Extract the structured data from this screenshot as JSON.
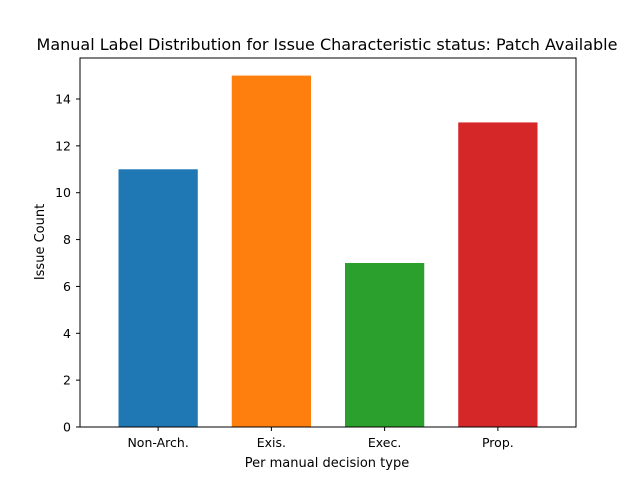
{
  "chart_data": {
    "type": "bar",
    "title": "Manual Label Distribution for Issue Characteristic status: Patch Available",
    "xlabel": "Per manual decision type",
    "ylabel": "Issue Count",
    "categories": [
      "Non-Arch.",
      "Exis.",
      "Exec.",
      "Prop."
    ],
    "values": [
      11,
      15,
      7,
      13
    ],
    "colors": [
      "#1f77b4",
      "#ff7f0e",
      "#2ca02c",
      "#d62728"
    ],
    "ylim": [
      0,
      15.75
    ],
    "yticks": [
      0,
      2,
      4,
      6,
      8,
      10,
      12,
      14
    ],
    "grid": false,
    "legend": "none"
  }
}
